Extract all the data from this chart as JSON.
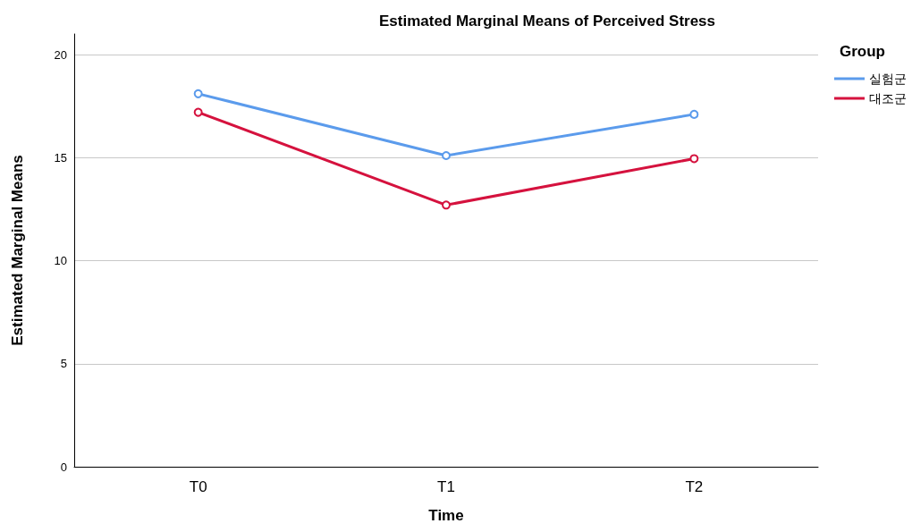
{
  "chart_data": {
    "type": "line",
    "title": "Estimated Marginal Means of Perceived Stress",
    "xlabel": "Time",
    "ylabel": "Estimated Marginal Means",
    "legend_title": "Group",
    "categories": [
      "T0",
      "T1",
      "T2"
    ],
    "series": [
      {
        "name": "실험군",
        "color": "#5b9bec",
        "values": [
          18.1,
          15.1,
          17.1
        ]
      },
      {
        "name": "대조군",
        "color": "#d5123e",
        "values": [
          17.2,
          12.7,
          14.95
        ]
      }
    ],
    "ylim": [
      0,
      21
    ],
    "yticks": [
      0,
      5,
      10,
      15,
      20
    ],
    "grid": "y",
    "legend": "top right",
    "marker": "circle",
    "line_style": "solid"
  }
}
